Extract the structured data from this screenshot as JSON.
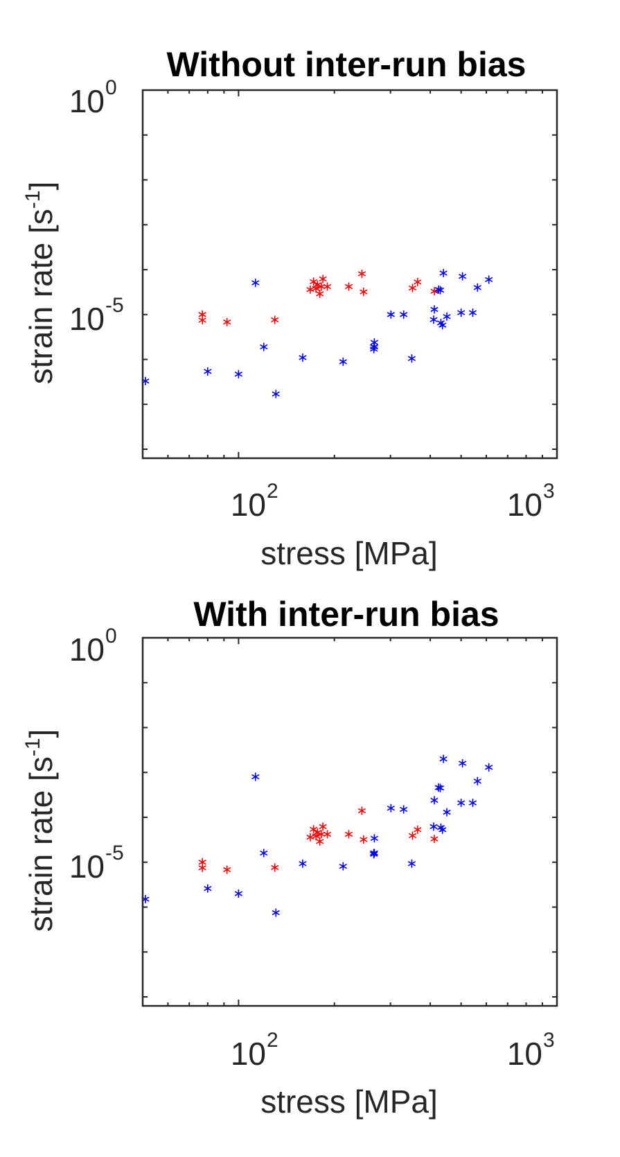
{
  "chart_data": [
    {
      "type": "scatter",
      "title": "Without inter-run bias",
      "xlabel": "stress [MPa]",
      "ylabel": "strain rate [s-1]",
      "xscale": "log",
      "yscale": "log",
      "xlim": [
        50,
        1000
      ],
      "ylim": [
        6.3e-09,
        1
      ],
      "xticklabels": [
        {
          "value": 100,
          "base": "10",
          "exp": "2"
        },
        {
          "value": 1000,
          "base": "10",
          "exp": "3"
        }
      ],
      "yticklabels": [
        {
          "value": 1e-05,
          "base": "10",
          "exp": "-5"
        },
        {
          "value": 1,
          "base": "10",
          "exp": "0"
        }
      ],
      "marker": "asterisk",
      "grid": false,
      "series": [
        {
          "color": "#ff0000",
          "points": [
            [
              77,
              1e-05
            ],
            [
              77,
              7.5e-06
            ],
            [
              92,
              6.8e-06
            ],
            [
              130,
              7.6e-06
            ],
            [
              168,
              3.6e-05
            ],
            [
              172,
              5.4e-05
            ],
            [
              175,
              3.8e-05
            ],
            [
              177,
              4.6e-05
            ],
            [
              180,
              2.9e-05
            ],
            [
              182,
              4.2e-05
            ],
            [
              184,
              6.2e-05
            ],
            [
              190,
              4.2e-05
            ],
            [
              222,
              4.2e-05
            ],
            [
              244,
              8.1e-05
            ],
            [
              247,
              3.2e-05
            ],
            [
              352,
              3.9e-05
            ],
            [
              365,
              5.3e-05
            ],
            [
              412,
              3.3e-05
            ]
          ]
        },
        {
          "color": "#0000ff",
          "points": [
            [
              51,
              3.3e-07
            ],
            [
              80,
              5.4e-07
            ],
            [
              100,
              4.7e-07
            ],
            [
              113,
              5.1e-05
            ],
            [
              120,
              1.9e-06
            ],
            [
              131,
              1.7e-07
            ],
            [
              159,
              1.1e-06
            ],
            [
              213,
              8.9e-07
            ],
            [
              266,
              1.7e-06
            ],
            [
              266,
              1.9e-06
            ],
            [
              267,
              2.4e-06
            ],
            [
              267,
              1.9e-06
            ],
            [
              301,
              1e-05
            ],
            [
              330,
              1e-05
            ],
            [
              350,
              1.05e-06
            ],
            [
              410,
              7.7e-06
            ],
            [
              412,
              1.3e-05
            ],
            [
              425,
              3.6e-05
            ],
            [
              430,
              3.5e-05
            ],
            [
              432,
              6.5e-06
            ],
            [
              437,
              5.8e-06
            ],
            [
              440,
              8.4e-05
            ],
            [
              451,
              9e-06
            ],
            [
              500,
              1.1e-05
            ],
            [
              505,
              7.1e-05
            ],
            [
              544,
              1.1e-05
            ],
            [
              563,
              4e-05
            ],
            [
              611,
              6e-05
            ]
          ]
        }
      ]
    },
    {
      "type": "scatter",
      "title": "With inter-run bias",
      "xlabel": "stress [MPa]",
      "ylabel": "strain rate [s-1]",
      "xscale": "log",
      "yscale": "log",
      "xlim": [
        50,
        1000
      ],
      "ylim": [
        6.3e-09,
        1
      ],
      "xticklabels": [
        {
          "value": 100,
          "base": "10",
          "exp": "2"
        },
        {
          "value": 1000,
          "base": "10",
          "exp": "3"
        }
      ],
      "yticklabels": [
        {
          "value": 1e-05,
          "base": "10",
          "exp": "-5"
        },
        {
          "value": 1,
          "base": "10",
          "exp": "0"
        }
      ],
      "marker": "asterisk",
      "grid": false,
      "series": [
        {
          "color": "#ff0000",
          "points": [
            [
              77,
              1e-05
            ],
            [
              77,
              7.5e-06
            ],
            [
              92,
              6.8e-06
            ],
            [
              130,
              7.6e-06
            ],
            [
              168,
              3.6e-05
            ],
            [
              172,
              5.4e-05
            ],
            [
              175,
              3.8e-05
            ],
            [
              177,
              4.6e-05
            ],
            [
              180,
              2.9e-05
            ],
            [
              182,
              4.2e-05
            ],
            [
              184,
              6.2e-05
            ],
            [
              190,
              4.2e-05
            ],
            [
              222,
              4.2e-05
            ],
            [
              244,
              0.00014
            ],
            [
              247,
              3.2e-05
            ],
            [
              352,
              3.9e-05
            ],
            [
              365,
              5.3e-05
            ],
            [
              412,
              3.3e-05
            ]
          ]
        },
        {
          "color": "#0000ff",
          "points": [
            [
              51,
              1.5e-06
            ],
            [
              80,
              2.6e-06
            ],
            [
              100,
              2e-06
            ],
            [
              113,
              0.0008
            ],
            [
              120,
              1.6e-05
            ],
            [
              131,
              7.5e-07
            ],
            [
              159,
              9.3e-06
            ],
            [
              213,
              8.1e-06
            ],
            [
              266,
              1.5e-05
            ],
            [
              266,
              1.6e-05
            ],
            [
              267,
              3.4e-05
            ],
            [
              267,
              1.6e-05
            ],
            [
              301,
              0.00016
            ],
            [
              330,
              0.00015
            ],
            [
              350,
              9.3e-06
            ],
            [
              410,
              6.2e-05
            ],
            [
              412,
              0.00024
            ],
            [
              425,
              0.00046
            ],
            [
              430,
              0.00045
            ],
            [
              432,
              5.9e-05
            ],
            [
              437,
              5.3e-05
            ],
            [
              440,
              0.002
            ],
            [
              451,
              0.00013
            ],
            [
              500,
              0.00021
            ],
            [
              505,
              0.0016
            ],
            [
              544,
              0.00021
            ],
            [
              563,
              0.00064
            ],
            [
              611,
              0.0013
            ]
          ]
        }
      ]
    }
  ]
}
